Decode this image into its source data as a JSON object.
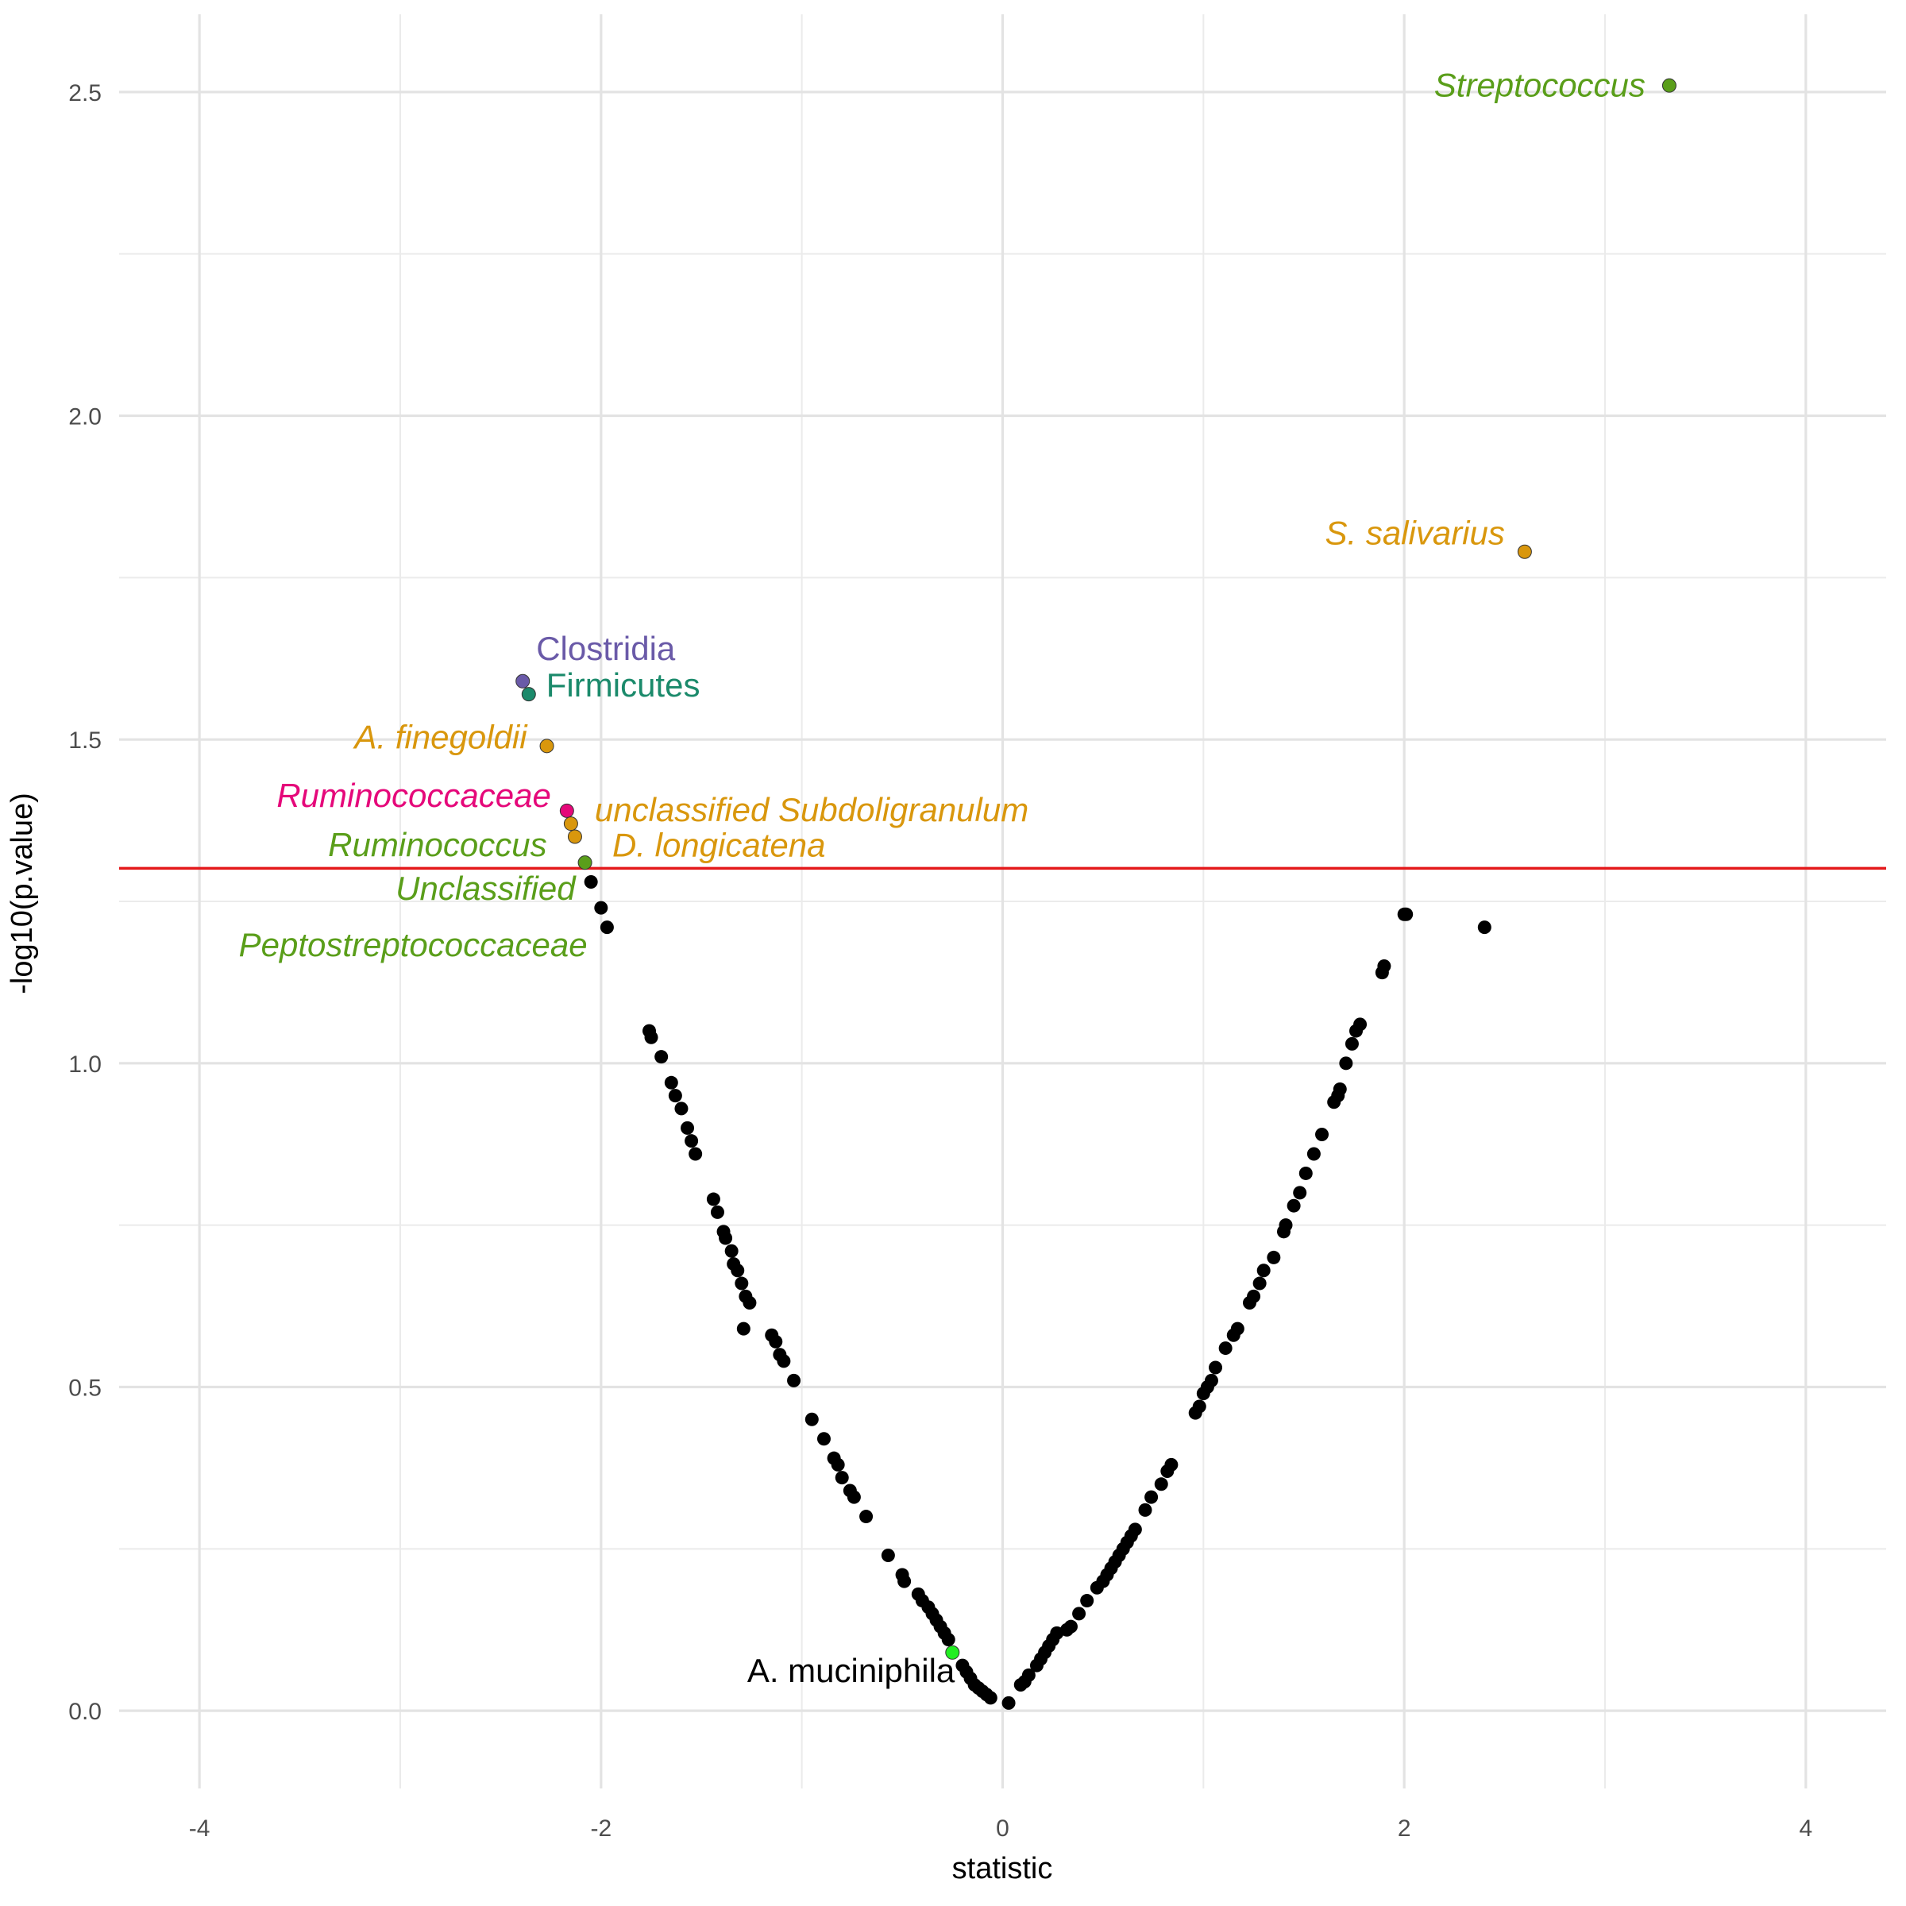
{
  "chart_data": {
    "type": "scatter",
    "xlabel": "statistic",
    "ylabel": "-log10(p.value)",
    "xlim": [
      -4.4,
      4.4
    ],
    "ylim": [
      -0.12,
      2.62
    ],
    "x_ticks": [
      "-4",
      "-2",
      "0",
      "2",
      "4"
    ],
    "x_tick_values": [
      -4,
      -2,
      0,
      2,
      4
    ],
    "y_ticks": [
      "0.0",
      "0.5",
      "1.0",
      "1.5",
      "2.0",
      "2.5"
    ],
    "y_tick_values": [
      0,
      0.5,
      1.0,
      1.5,
      2.0,
      2.5
    ],
    "grid": true,
    "threshold": {
      "y": 1.301,
      "color": "#e41a1c"
    },
    "highlighted": [
      {
        "label": "Streptococcus",
        "x": 3.32,
        "y": 2.51,
        "color": "#5a9e1a",
        "italic": true,
        "anchor": "end"
      },
      {
        "label": "S. salivarius",
        "x": 2.6,
        "y": 1.79,
        "color": "#d9970d",
        "italic": true,
        "anchor": "end"
      },
      {
        "label": "Clostridia",
        "x": -2.39,
        "y": 1.59,
        "color": "#6a5aa8",
        "italic": false,
        "anchor": "start"
      },
      {
        "label": "Firmicutes",
        "x": -2.36,
        "y": 1.57,
        "color": "#1b8a6b",
        "italic": false,
        "anchor": "start"
      },
      {
        "label": "A. finegoldii",
        "x": -2.27,
        "y": 1.49,
        "color": "#d9970d",
        "italic": true,
        "anchor": "end"
      },
      {
        "label": "Ruminococcaceae",
        "x": -2.17,
        "y": 1.39,
        "color": "#e5087a",
        "italic": true,
        "anchor": "end"
      },
      {
        "label": "unclassified Subdoligranulum",
        "x": -2.15,
        "y": 1.37,
        "color": "#d9970d",
        "italic": true,
        "anchor": "start"
      },
      {
        "label": "D. longicatena",
        "x": -2.13,
        "y": 1.35,
        "color": "#d9970d",
        "italic": true,
        "anchor": "start"
      },
      {
        "label": "Ruminococcus",
        "x": -2.08,
        "y": 1.31,
        "color": "#5a9e1a",
        "italic": true,
        "anchor": "end"
      },
      {
        "label": "Unclassified",
        "x": -2.08,
        "y": 1.31,
        "color": "#5a9e1a",
        "italic": true,
        "anchor": "end"
      },
      {
        "label": "Peptostreptococcaceae",
        "x": -2.08,
        "y": 1.31,
        "color": "#5a9e1a",
        "italic": true,
        "anchor": "end"
      },
      {
        "label": "A. muciniphila",
        "x": -0.25,
        "y": 0.09,
        "color": "#22ee22",
        "italic": false,
        "anchor": "end"
      }
    ],
    "points": [
      [
        -2.05,
        1.28
      ],
      [
        -2.0,
        1.24
      ],
      [
        -1.97,
        1.21
      ],
      [
        -1.76,
        1.05
      ],
      [
        -1.75,
        1.04
      ],
      [
        -1.7,
        1.01
      ],
      [
        -1.65,
        0.97
      ],
      [
        -1.63,
        0.95
      ],
      [
        -1.6,
        0.93
      ],
      [
        -1.57,
        0.9
      ],
      [
        -1.55,
        0.88
      ],
      [
        -1.53,
        0.86
      ],
      [
        -1.44,
        0.79
      ],
      [
        -1.42,
        0.77
      ],
      [
        -1.39,
        0.74
      ],
      [
        -1.38,
        0.73
      ],
      [
        -1.35,
        0.71
      ],
      [
        -1.34,
        0.69
      ],
      [
        -1.32,
        0.68
      ],
      [
        -1.3,
        0.66
      ],
      [
        -1.28,
        0.64
      ],
      [
        -1.26,
        0.63
      ],
      [
        -1.29,
        0.59
      ],
      [
        -1.15,
        0.58
      ],
      [
        -1.13,
        0.57
      ],
      [
        -1.11,
        0.55
      ],
      [
        -1.09,
        0.54
      ],
      [
        -1.04,
        0.51
      ],
      [
        -0.95,
        0.45
      ],
      [
        -0.89,
        0.42
      ],
      [
        -0.84,
        0.39
      ],
      [
        -0.82,
        0.38
      ],
      [
        -0.8,
        0.36
      ],
      [
        -0.76,
        0.34
      ],
      [
        -0.74,
        0.33
      ],
      [
        -0.68,
        0.3
      ],
      [
        -0.57,
        0.24
      ],
      [
        -0.5,
        0.21
      ],
      [
        -0.49,
        0.2
      ],
      [
        -0.42,
        0.18
      ],
      [
        -0.4,
        0.17
      ],
      [
        -0.37,
        0.16
      ],
      [
        -0.35,
        0.15
      ],
      [
        -0.33,
        0.14
      ],
      [
        -0.31,
        0.13
      ],
      [
        -0.29,
        0.12
      ],
      [
        -0.27,
        0.11
      ],
      [
        -0.2,
        0.07
      ],
      [
        -0.18,
        0.06
      ],
      [
        -0.16,
        0.05
      ],
      [
        -0.14,
        0.04
      ],
      [
        -0.12,
        0.035
      ],
      [
        -0.1,
        0.03
      ],
      [
        -0.08,
        0.025
      ],
      [
        -0.06,
        0.02
      ],
      [
        0.03,
        0.012
      ],
      [
        0.09,
        0.04
      ],
      [
        0.11,
        0.045
      ],
      [
        0.13,
        0.055
      ],
      [
        0.17,
        0.07
      ],
      [
        0.19,
        0.08
      ],
      [
        0.21,
        0.09
      ],
      [
        0.23,
        0.1
      ],
      [
        0.25,
        0.11
      ],
      [
        0.27,
        0.12
      ],
      [
        0.32,
        0.125
      ],
      [
        0.34,
        0.13
      ],
      [
        0.38,
        0.15
      ],
      [
        0.42,
        0.17
      ],
      [
        0.47,
        0.19
      ],
      [
        0.5,
        0.2
      ],
      [
        0.52,
        0.21
      ],
      [
        0.54,
        0.22
      ],
      [
        0.56,
        0.23
      ],
      [
        0.58,
        0.24
      ],
      [
        0.6,
        0.25
      ],
      [
        0.62,
        0.26
      ],
      [
        0.64,
        0.27
      ],
      [
        0.66,
        0.28
      ],
      [
        0.71,
        0.31
      ],
      [
        0.74,
        0.33
      ],
      [
        0.79,
        0.35
      ],
      [
        0.82,
        0.37
      ],
      [
        0.84,
        0.38
      ],
      [
        0.96,
        0.46
      ],
      [
        0.98,
        0.47
      ],
      [
        1.0,
        0.49
      ],
      [
        1.02,
        0.5
      ],
      [
        1.04,
        0.51
      ],
      [
        1.06,
        0.53
      ],
      [
        1.11,
        0.56
      ],
      [
        1.15,
        0.58
      ],
      [
        1.17,
        0.59
      ],
      [
        1.23,
        0.63
      ],
      [
        1.25,
        0.64
      ],
      [
        1.28,
        0.66
      ],
      [
        1.3,
        0.68
      ],
      [
        1.35,
        0.7
      ],
      [
        1.4,
        0.74
      ],
      [
        1.41,
        0.75
      ],
      [
        1.45,
        0.78
      ],
      [
        1.48,
        0.8
      ],
      [
        1.51,
        0.83
      ],
      [
        1.55,
        0.86
      ],
      [
        1.59,
        0.89
      ],
      [
        1.65,
        0.94
      ],
      [
        1.67,
        0.95
      ],
      [
        1.68,
        0.96
      ],
      [
        1.71,
        1.0
      ],
      [
        1.74,
        1.03
      ],
      [
        1.76,
        1.05
      ],
      [
        1.78,
        1.06
      ],
      [
        1.89,
        1.14
      ],
      [
        1.9,
        1.15
      ],
      [
        2.0,
        1.23
      ],
      [
        2.01,
        1.23
      ],
      [
        2.4,
        1.21
      ]
    ]
  }
}
